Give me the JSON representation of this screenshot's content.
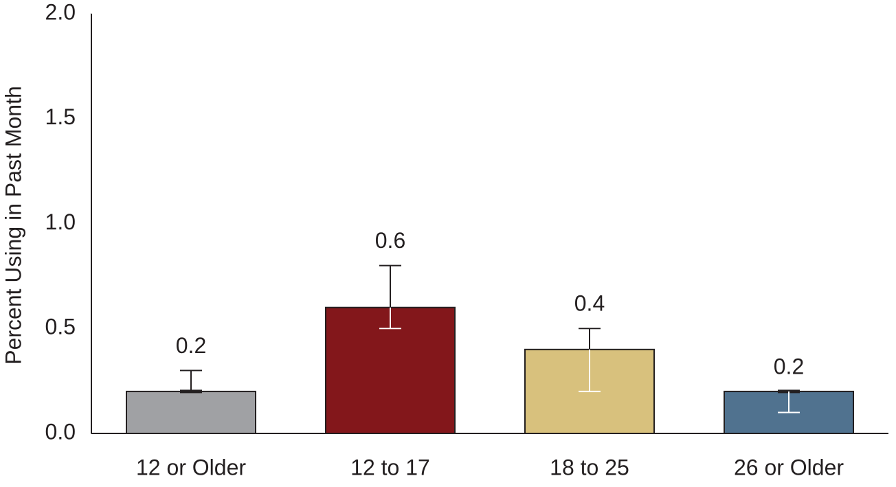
{
  "chart_data": {
    "type": "bar",
    "y_label": "Percent Using in Past Month",
    "categories": [
      "12 or Older",
      "12 to 17",
      "18 to 25",
      "26 or Older"
    ],
    "values": [
      0.2,
      0.6,
      0.4,
      0.2
    ],
    "errors_minus": [
      0.0,
      0.1,
      0.2,
      0.1
    ],
    "errors_plus": [
      0.1,
      0.2,
      0.1,
      0.0
    ],
    "colors": [
      "#a0a1a4",
      "#83171b",
      "#d8c17d",
      "#50728f"
    ],
    "ylim": [
      0,
      2
    ],
    "yticks": [
      {
        "value": 0,
        "label": "0.0"
      },
      0.5,
      {
        "value": 1,
        "label": "1.0"
      },
      1.5,
      {
        "value": 2,
        "label": "2.0"
      }
    ]
  }
}
